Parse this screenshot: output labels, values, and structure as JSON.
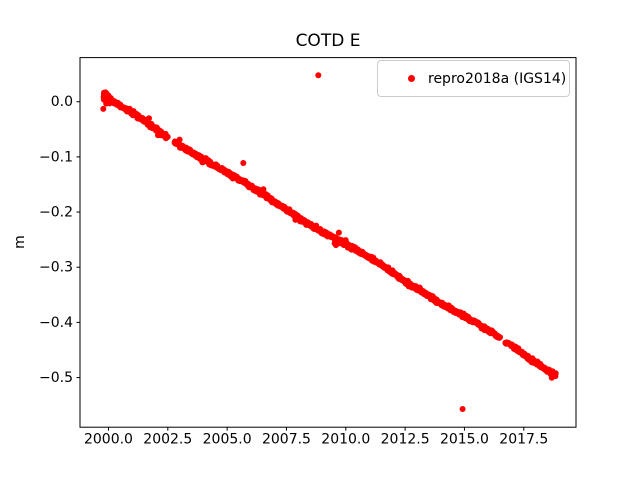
{
  "figure": {
    "background": "#ffffff",
    "title": "COTD E"
  },
  "legend": {
    "label": "repro2018a (IGS14)",
    "marker_color": "#ff0000",
    "position": "upper right"
  },
  "chart_data": {
    "type": "scatter",
    "title": "COTD E",
    "xlabel": "",
    "ylabel": "m",
    "grid": false,
    "xlim": [
      1998.8,
      2019.7
    ],
    "ylim": [
      -0.59,
      0.08
    ],
    "x_ticks": [
      2000.0,
      2002.5,
      2005.0,
      2007.5,
      2010.0,
      2012.5,
      2015.0,
      2017.5
    ],
    "x_tick_labels": [
      "2000.0",
      "2002.5",
      "2005.0",
      "2007.5",
      "2010.0",
      "2012.5",
      "2015.0",
      "2017.5"
    ],
    "y_ticks": [
      0.0,
      -0.1,
      -0.2,
      -0.3,
      -0.4,
      -0.5
    ],
    "y_tick_labels": [
      "0.0",
      "−0.1",
      "−0.2",
      "−0.3",
      "−0.4",
      "−0.5"
    ],
    "series": [
      {
        "name": "repro2018a (IGS14)",
        "color": "#ff0000",
        "marker": "dot",
        "marker_radius_px": 3,
        "trend": {
          "x_start": 1999.8,
          "x_end": 2018.85,
          "y_start": 0.008,
          "y_end": -0.492,
          "slope_m_per_yr": -0.02625,
          "points_per_year": 66,
          "noise_std": 0.0018,
          "spike_fraction": 0.04,
          "spike_scale": 3,
          "seed": 42
        },
        "wiggles": [
          {
            "amp": 0.0025,
            "freq": 1.25,
            "phase": 0.5
          },
          {
            "amp": 0.0015,
            "freq": 0.45,
            "phase": 2.0
          }
        ],
        "gaps": [
          [
            2002.5,
            2002.77
          ],
          [
            2016.5,
            2016.72
          ]
        ],
        "start_cluster": {
          "x_range": [
            1999.8,
            2000.1
          ],
          "extra_points": 70,
          "std": 0.0035,
          "offset": 0.003
        },
        "outliers": [
          [
            1999.78,
            -0.013
          ],
          [
            2005.68,
            -0.111
          ],
          [
            2008.84,
            0.048
          ],
          [
            2014.92,
            -0.557
          ]
        ]
      }
    ],
    "axes_color": "#000000",
    "tick_font_px": 14
  }
}
